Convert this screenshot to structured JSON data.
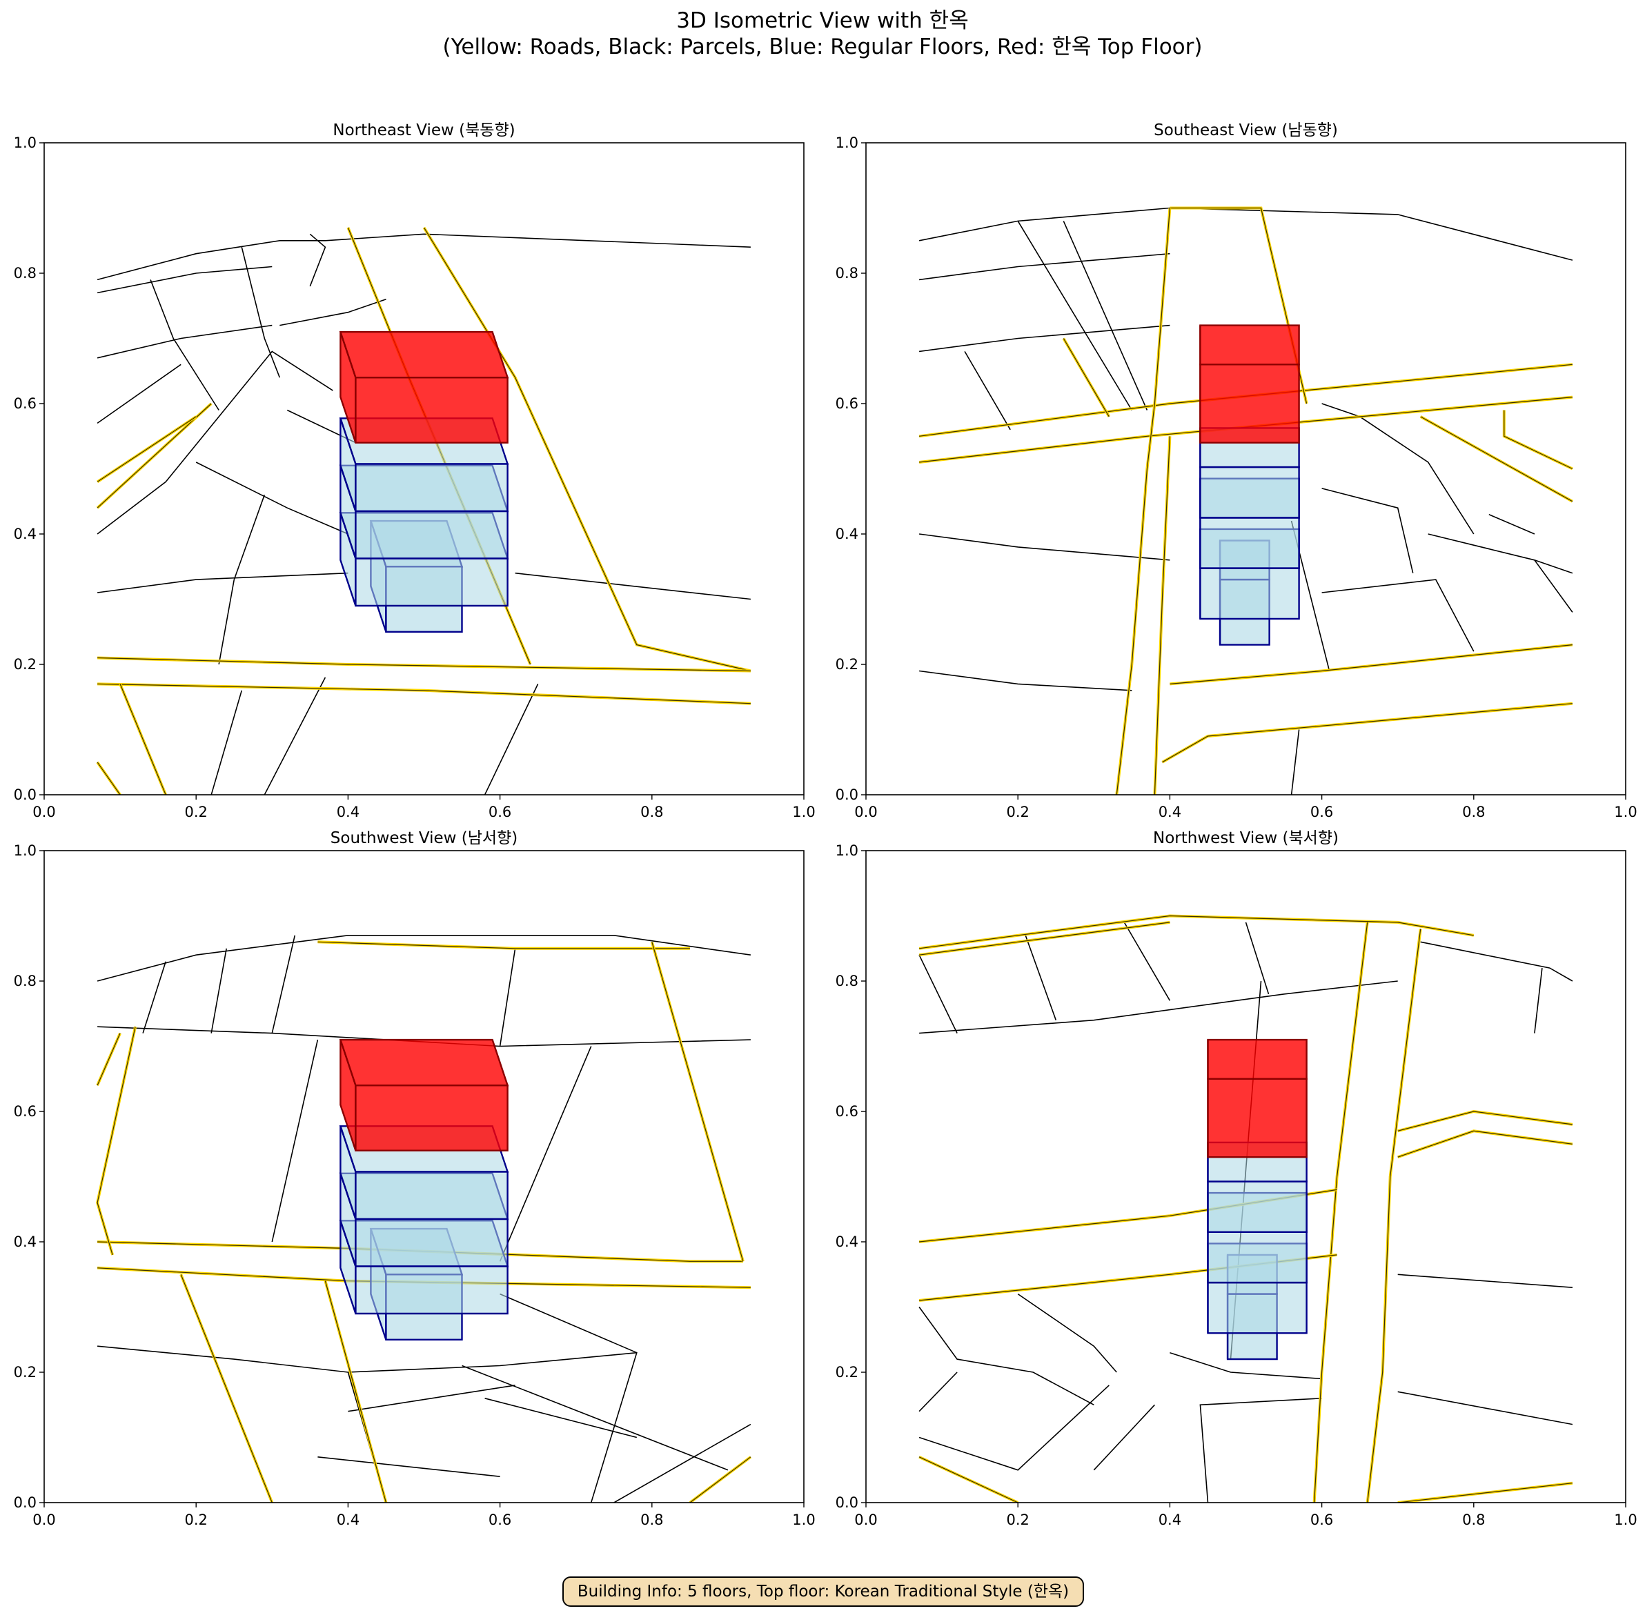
{
  "figure": {
    "title_line1": "3D Isometric View with 한옥",
    "title_line2": "(Yellow: Roads, Black: Parcels, Blue: Regular Floors, Red: 한옥 Top Floor)",
    "info_box": "Building Info: 5 floors, Top floor: Korean Traditional Style (한옥)"
  },
  "colors": {
    "roads": "#ffd700",
    "road_edge": "#3a3000",
    "parcels": "#000000",
    "regular_floors_fill": "#add8e6",
    "regular_floors_edge": "#00008b",
    "hanok_fill": "#ff0000",
    "hanok_edge": "#8b0000"
  },
  "chart_data": [
    {
      "type": "other",
      "title": "Northeast View (북동향)",
      "xlim": [
        0,
        1
      ],
      "ylim": [
        0,
        1
      ],
      "xticks": [
        "0.0",
        "0.2",
        "0.4",
        "0.6",
        "0.8",
        "1.0"
      ],
      "yticks": [
        "0.0",
        "0.2",
        "0.4",
        "0.6",
        "0.8",
        "1.0"
      ]
    },
    {
      "type": "other",
      "title": "Southeast View (남동향)",
      "xlim": [
        0,
        1
      ],
      "ylim": [
        0,
        1
      ],
      "xticks": [
        "0.0",
        "0.2",
        "0.4",
        "0.6",
        "0.8",
        "1.0"
      ],
      "yticks": [
        "0.0",
        "0.2",
        "0.4",
        "0.6",
        "0.8",
        "1.0"
      ]
    },
    {
      "type": "other",
      "title": "Southwest View (남서향)",
      "xlim": [
        0,
        1
      ],
      "ylim": [
        0,
        1
      ],
      "xticks": [
        "0.0",
        "0.2",
        "0.4",
        "0.6",
        "0.8",
        "1.0"
      ],
      "yticks": [
        "0.0",
        "0.2",
        "0.4",
        "0.6",
        "0.8",
        "1.0"
      ]
    },
    {
      "type": "other",
      "title": "Northwest View (북서향)",
      "xlim": [
        0,
        1
      ],
      "ylim": [
        0,
        1
      ],
      "xticks": [
        "0.0",
        "0.2",
        "0.4",
        "0.6",
        "0.8",
        "1.0"
      ],
      "yticks": [
        "0.0",
        "0.2",
        "0.4",
        "0.6",
        "0.8",
        "1.0"
      ]
    }
  ]
}
